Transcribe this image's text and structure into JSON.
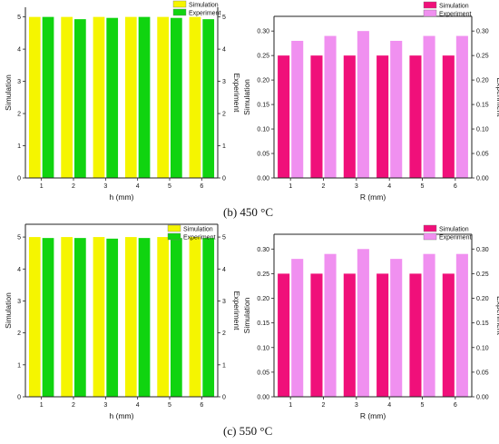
{
  "captions": {
    "b": "(b) 450 °C",
    "c": "(c) 550 °C"
  },
  "colors": {
    "sim_h": "#f5f500",
    "exp_h": "#10d410",
    "sim_r": "#f0107a",
    "exp_r": "#f090f0",
    "axis": "#222222",
    "text": "#111111"
  },
  "chart_data": [
    {
      "id": "b-h",
      "panel": "(b)",
      "type": "bar",
      "categories": [
        "1",
        "2",
        "3",
        "4",
        "5",
        "6"
      ],
      "xlabel": "h (mm)",
      "ylabel": "Simulation",
      "ylabel_right": "Experiment",
      "ylim": [
        0,
        5.3
      ],
      "yticks": [
        "0",
        "1",
        "2",
        "3",
        "4",
        "5"
      ],
      "yticks_right": [
        "0",
        "1",
        "2",
        "3",
        "4",
        "5"
      ],
      "tick_values": [
        0,
        1,
        2,
        3,
        4,
        5
      ],
      "series": [
        {
          "name": "Simulation",
          "values": [
            5.0,
            5.0,
            5.0,
            5.0,
            5.0,
            5.0
          ]
        },
        {
          "name": "Experiment",
          "values": [
            5.0,
            4.93,
            4.97,
            5.0,
            4.97,
            4.93
          ]
        }
      ],
      "legend": "top-right",
      "grid": false
    },
    {
      "id": "b-r",
      "panel": "(b)",
      "type": "bar",
      "categories": [
        "1",
        "2",
        "3",
        "4",
        "5",
        "6"
      ],
      "xlabel": "R (mm)",
      "ylabel": "Simulation",
      "ylabel_right": "Experiment",
      "ylim": [
        0,
        0.33
      ],
      "yticks": [
        "0.00",
        "0.05",
        "0.10",
        "0.15",
        "0.20",
        "0.25",
        "0.30"
      ],
      "yticks_right": [
        "0.00",
        "0.05",
        "0.10",
        "0.15",
        "0.20",
        "0.25",
        "0.30"
      ],
      "tick_values": [
        0,
        0.05,
        0.1,
        0.15,
        0.2,
        0.25,
        0.3
      ],
      "series": [
        {
          "name": "Simulation",
          "values": [
            0.25,
            0.25,
            0.25,
            0.25,
            0.25,
            0.25
          ]
        },
        {
          "name": "Experiment",
          "values": [
            0.28,
            0.29,
            0.3,
            0.28,
            0.29,
            0.29
          ]
        }
      ],
      "legend": "top-right",
      "grid": false
    },
    {
      "id": "c-h",
      "panel": "(c)",
      "type": "bar",
      "categories": [
        "1",
        "2",
        "3",
        "4",
        "5",
        "6"
      ],
      "xlabel": "h (mm)",
      "ylabel": "Simulation",
      "ylabel_right": "Experiment",
      "ylim": [
        0,
        5.4
      ],
      "yticks": [
        "0",
        "1",
        "2",
        "3",
        "4",
        "5"
      ],
      "yticks_right": [
        "0",
        "1",
        "2",
        "3",
        "4",
        "5"
      ],
      "tick_values": [
        0,
        1,
        2,
        3,
        4,
        5
      ],
      "series": [
        {
          "name": "Simulation",
          "values": [
            5.0,
            5.0,
            5.0,
            5.0,
            5.0,
            5.0
          ]
        },
        {
          "name": "Experiment",
          "values": [
            4.97,
            4.97,
            4.95,
            4.97,
            4.97,
            4.97
          ]
        }
      ],
      "legend": "top-right",
      "grid": false
    },
    {
      "id": "c-r",
      "panel": "(c)",
      "type": "bar",
      "categories": [
        "1",
        "2",
        "3",
        "4",
        "5",
        "6"
      ],
      "xlabel": "R (mm)",
      "ylabel": "Simulation",
      "ylabel_right": "Experiment",
      "ylim": [
        0,
        0.33
      ],
      "yticks": [
        "0.00",
        "0.05",
        "0.10",
        "0.15",
        "0.20",
        "0.25",
        "0.30"
      ],
      "yticks_right": [
        "0.00",
        "0.05",
        "0.10",
        "0.15",
        "0.20",
        "0.25",
        "0.30"
      ],
      "tick_values": [
        0,
        0.05,
        0.1,
        0.15,
        0.2,
        0.25,
        0.3
      ],
      "series": [
        {
          "name": "Simulation",
          "values": [
            0.25,
            0.25,
            0.25,
            0.25,
            0.25,
            0.25
          ]
        },
        {
          "name": "Experiment",
          "values": [
            0.28,
            0.29,
            0.3,
            0.28,
            0.29,
            0.29
          ]
        }
      ],
      "legend": "top-right",
      "grid": false
    }
  ]
}
